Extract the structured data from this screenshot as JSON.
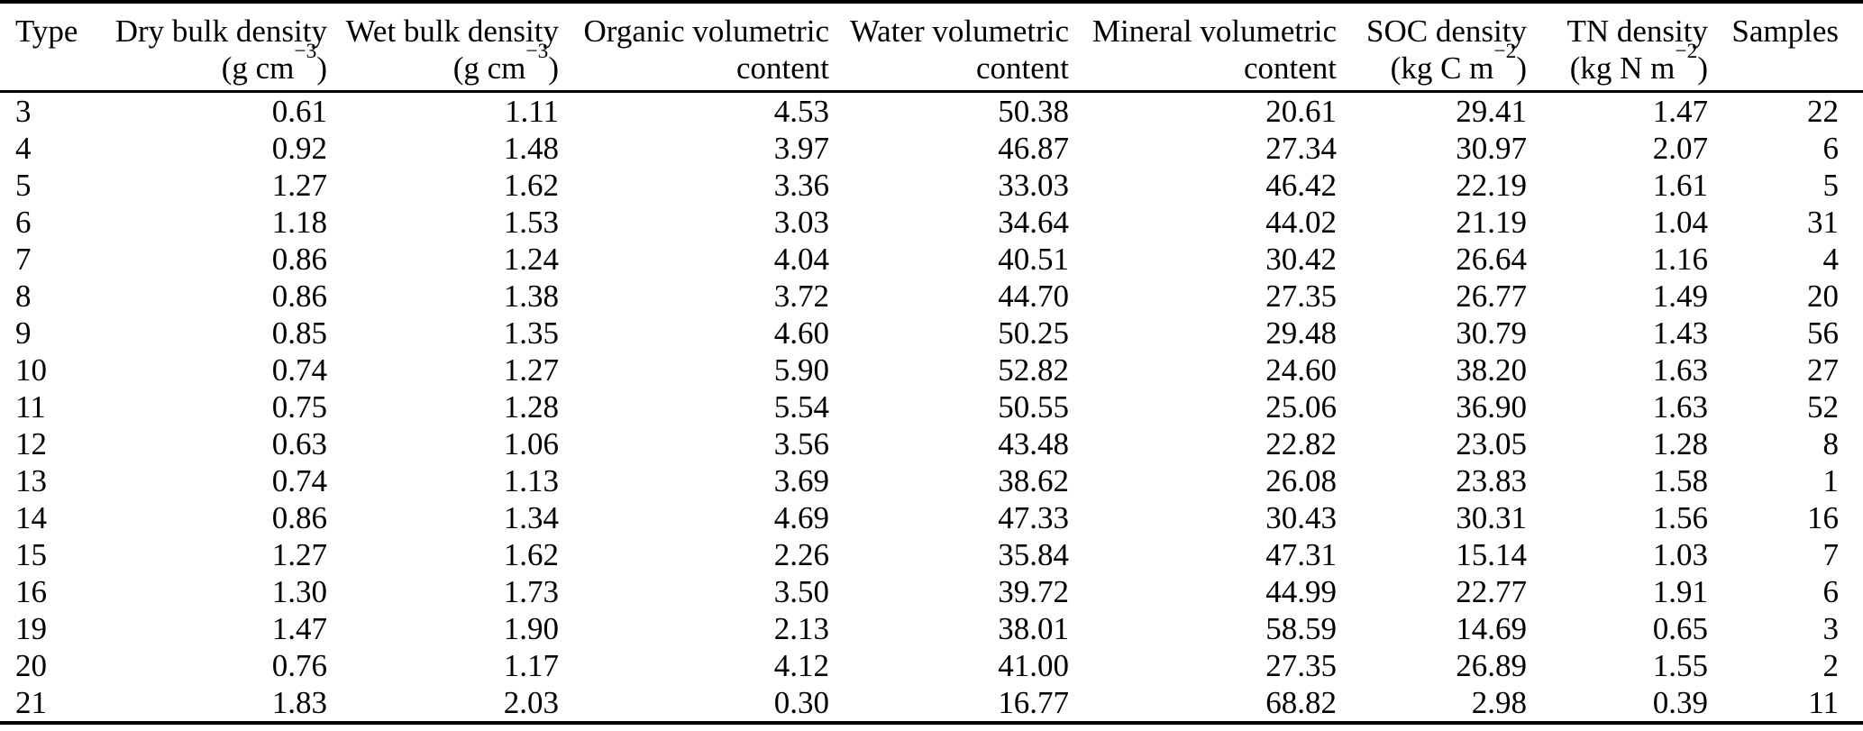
{
  "table": {
    "columns": [
      {
        "key": "type",
        "label": "Type"
      },
      {
        "key": "dry-bulk-density",
        "label": "Dry bulk density",
        "unit_base": "(g cm",
        "unit_sup": "−3",
        "unit_tail": ")"
      },
      {
        "key": "wet-bulk-density",
        "label": "Wet bulk density",
        "unit_base": "(g cm",
        "unit_sup": "−3",
        "unit_tail": ")"
      },
      {
        "key": "organic-volumetric-content",
        "label": "Organic volumetric",
        "label2": "content"
      },
      {
        "key": "water-volumetric-content",
        "label": "Water volumetric",
        "label2": "content"
      },
      {
        "key": "mineral-volumetric-content",
        "label": "Mineral volumetric",
        "label2": "content"
      },
      {
        "key": "soc-density",
        "label": "SOC density",
        "unit_base": "(kg C m",
        "unit_sup": "−2",
        "unit_tail": ")"
      },
      {
        "key": "tn-density",
        "label": "TN density",
        "unit_base": "(kg N m",
        "unit_sup": "−2",
        "unit_tail": ")"
      },
      {
        "key": "samples",
        "label": "Samples"
      }
    ],
    "rows": [
      [
        "3",
        "0.61",
        "1.11",
        "4.53",
        "50.38",
        "20.61",
        "29.41",
        "1.47",
        "22"
      ],
      [
        "4",
        "0.92",
        "1.48",
        "3.97",
        "46.87",
        "27.34",
        "30.97",
        "2.07",
        "6"
      ],
      [
        "5",
        "1.27",
        "1.62",
        "3.36",
        "33.03",
        "46.42",
        "22.19",
        "1.61",
        "5"
      ],
      [
        "6",
        "1.18",
        "1.53",
        "3.03",
        "34.64",
        "44.02",
        "21.19",
        "1.04",
        "31"
      ],
      [
        "7",
        "0.86",
        "1.24",
        "4.04",
        "40.51",
        "30.42",
        "26.64",
        "1.16",
        "4"
      ],
      [
        "8",
        "0.86",
        "1.38",
        "3.72",
        "44.70",
        "27.35",
        "26.77",
        "1.49",
        "20"
      ],
      [
        "9",
        "0.85",
        "1.35",
        "4.60",
        "50.25",
        "29.48",
        "30.79",
        "1.43",
        "56"
      ],
      [
        "10",
        "0.74",
        "1.27",
        "5.90",
        "52.82",
        "24.60",
        "38.20",
        "1.63",
        "27"
      ],
      [
        "11",
        "0.75",
        "1.28",
        "5.54",
        "50.55",
        "25.06",
        "36.90",
        "1.63",
        "52"
      ],
      [
        "12",
        "0.63",
        "1.06",
        "3.56",
        "43.48",
        "22.82",
        "23.05",
        "1.28",
        "8"
      ],
      [
        "13",
        "0.74",
        "1.13",
        "3.69",
        "38.62",
        "26.08",
        "23.83",
        "1.58",
        "1"
      ],
      [
        "14",
        "0.86",
        "1.34",
        "4.69",
        "47.33",
        "30.43",
        "30.31",
        "1.56",
        "16"
      ],
      [
        "15",
        "1.27",
        "1.62",
        "2.26",
        "35.84",
        "47.31",
        "15.14",
        "1.03",
        "7"
      ],
      [
        "16",
        "1.30",
        "1.73",
        "3.50",
        "39.72",
        "44.99",
        "22.77",
        "1.91",
        "6"
      ],
      [
        "19",
        "1.47",
        "1.90",
        "2.13",
        "38.01",
        "58.59",
        "14.69",
        "0.65",
        "3"
      ],
      [
        "20",
        "0.76",
        "1.17",
        "4.12",
        "41.00",
        "27.35",
        "26.89",
        "1.55",
        "2"
      ],
      [
        "21",
        "1.83",
        "2.03",
        "0.30",
        "16.77",
        "68.82",
        "2.98",
        "0.39",
        "11"
      ]
    ]
  },
  "colors": {
    "text": "#000000",
    "background": "#ffffff",
    "rule": "#000000"
  }
}
